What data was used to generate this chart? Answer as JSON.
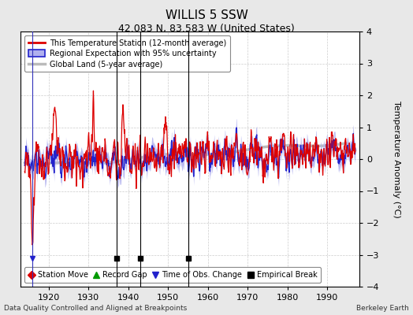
{
  "title": "WILLIS 5 SSW",
  "subtitle": "42.083 N, 83.583 W (United States)",
  "xlabel_bottom": "Data Quality Controlled and Aligned at Breakpoints",
  "xlabel_right": "Berkeley Earth",
  "ylabel": "Temperature Anomaly (°C)",
  "xlim": [
    1913,
    1998
  ],
  "ylim": [
    -4,
    4
  ],
  "yticks": [
    -4,
    -3,
    -2,
    -1,
    0,
    1,
    2,
    3,
    4
  ],
  "xticks": [
    1920,
    1930,
    1940,
    1950,
    1960,
    1970,
    1980,
    1990
  ],
  "background_color": "#e8e8e8",
  "plot_bg_color": "#ffffff",
  "station_line_color": "#dd0000",
  "regional_line_color": "#2222cc",
  "regional_band_color": "#b0b0ee",
  "global_line_color": "#bbbbbb",
  "empirical_breaks": [
    1937,
    1943,
    1955
  ],
  "time_of_obs_changes": [
    1916
  ],
  "grid_color": "#cccccc",
  "marker_y": -3.1,
  "figsize": [
    5.24,
    4.0
  ],
  "dpi": 100
}
